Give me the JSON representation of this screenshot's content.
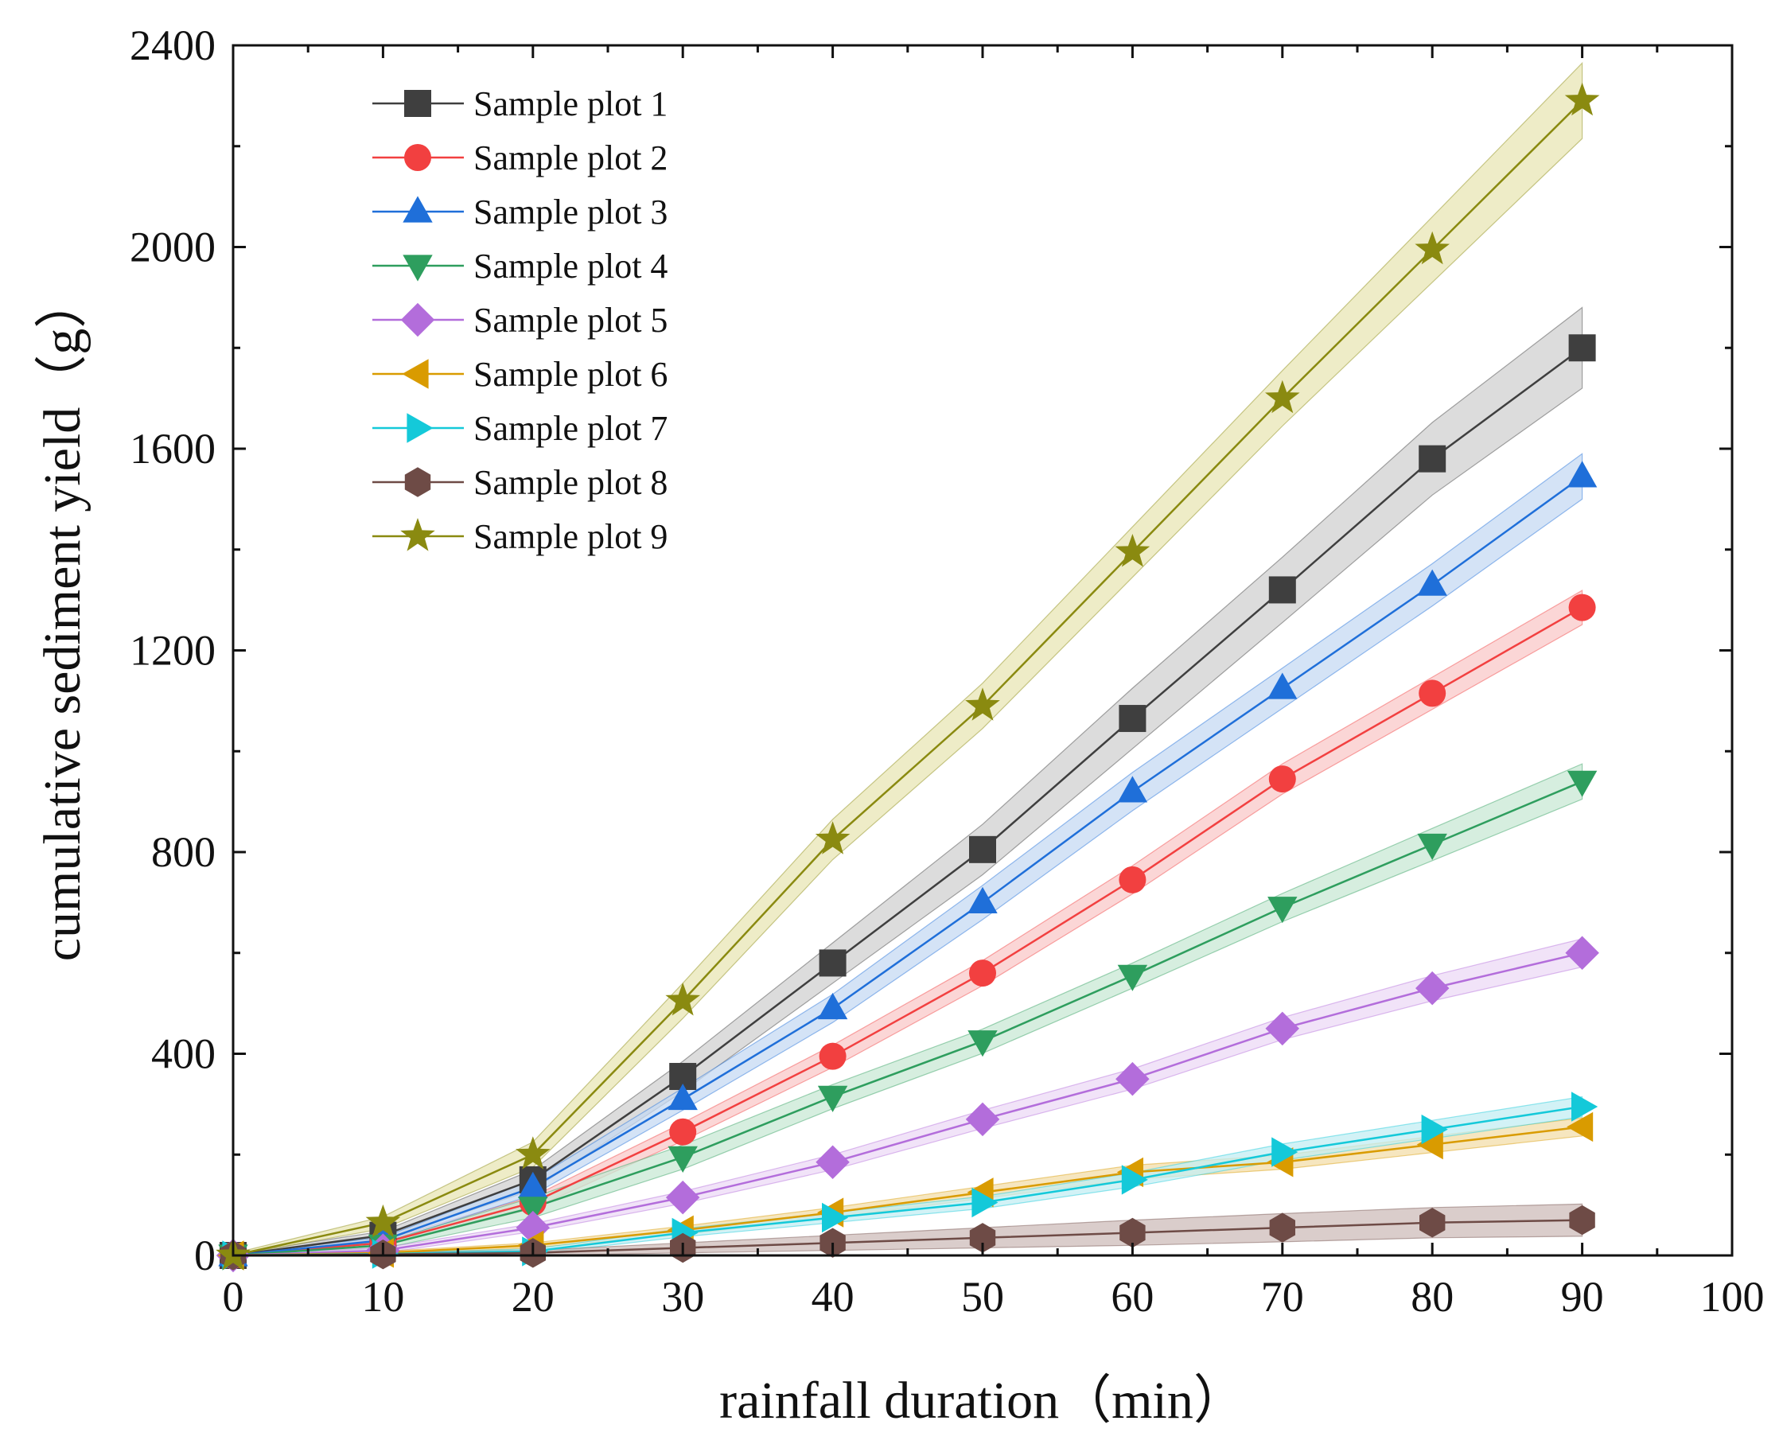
{
  "chart_data": {
    "type": "line",
    "title": "",
    "xlabel": "rainfall duration（min）",
    "ylabel": "cumulative sediment yield（g）",
    "xlim": [
      0,
      100
    ],
    "ylim": [
      0,
      2400
    ],
    "xticks": [
      "0",
      "10",
      "20",
      "30",
      "40",
      "50",
      "60",
      "70",
      "80",
      "90",
      "100"
    ],
    "yticks": [
      "0",
      "400",
      "800",
      "1200",
      "1600",
      "2000",
      "2400"
    ],
    "grid": false,
    "legend_position": "top-left",
    "x": [
      0,
      10,
      20,
      30,
      40,
      50,
      60,
      70,
      80,
      90
    ],
    "series": [
      {
        "name": "Sample plot 1",
        "color": "#3f3f3f",
        "band": "#d0d0d0",
        "marker": "square",
        "values": [
          0,
          40,
          150,
          355,
          580,
          805,
          1065,
          1320,
          1580,
          1800
        ],
        "error": [
          3,
          8,
          20,
          30,
          40,
          50,
          60,
          65,
          72,
          80
        ]
      },
      {
        "name": "Sample plot 2",
        "color": "#f24040",
        "band": "#f9c8c8",
        "marker": "circle",
        "values": [
          0,
          25,
          105,
          245,
          395,
          560,
          745,
          945,
          1115,
          1285
        ],
        "error": [
          3,
          6,
          12,
          18,
          22,
          25,
          28,
          30,
          32,
          34
        ]
      },
      {
        "name": "Sample plot 3",
        "color": "#1f6fd9",
        "band": "#c6daf3",
        "marker": "triangle-up",
        "values": [
          0,
          30,
          135,
          310,
          490,
          700,
          920,
          1125,
          1330,
          1545
        ],
        "error": [
          3,
          6,
          15,
          22,
          28,
          34,
          38,
          40,
          42,
          45
        ]
      },
      {
        "name": "Sample plot 4",
        "color": "#2e9e5e",
        "band": "#c8e8d4",
        "marker": "triangle-down",
        "values": [
          0,
          20,
          95,
          195,
          315,
          425,
          555,
          690,
          815,
          940
        ],
        "error": [
          3,
          6,
          20,
          24,
          24,
          24,
          25,
          28,
          32,
          35
        ]
      },
      {
        "name": "Sample plot 5",
        "color": "#b36ddb",
        "band": "#ecd9f5",
        "marker": "diamond",
        "values": [
          0,
          10,
          55,
          115,
          185,
          270,
          350,
          450,
          530,
          600
        ],
        "error": [
          3,
          5,
          8,
          12,
          15,
          18,
          20,
          22,
          25,
          28
        ]
      },
      {
        "name": "Sample plot 6",
        "color": "#d99b00",
        "band": "#f3deaa",
        "marker": "triangle-left",
        "values": [
          0,
          5,
          20,
          50,
          85,
          125,
          165,
          185,
          220,
          255
        ],
        "error": [
          2,
          3,
          5,
          8,
          10,
          12,
          14,
          14,
          16,
          18
        ]
      },
      {
        "name": "Sample plot 7",
        "color": "#14c9d9",
        "band": "#c3eef3",
        "marker": "triangle-right",
        "values": [
          0,
          3,
          8,
          45,
          75,
          105,
          150,
          205,
          250,
          295
        ],
        "error": [
          2,
          3,
          5,
          8,
          10,
          12,
          14,
          16,
          18,
          20
        ]
      },
      {
        "name": "Sample plot 8",
        "color": "#6e4b46",
        "band": "#cdbcb9",
        "marker": "hexagon",
        "values": [
          0,
          2,
          5,
          15,
          25,
          35,
          45,
          55,
          65,
          70
        ],
        "error": [
          2,
          3,
          5,
          10,
          15,
          20,
          25,
          28,
          30,
          32
        ]
      },
      {
        "name": "Sample plot 9",
        "color": "#8a8a10",
        "band": "#e8e6b4",
        "marker": "star",
        "values": [
          0,
          65,
          200,
          505,
          825,
          1090,
          1395,
          1700,
          1995,
          2290
        ],
        "error": [
          4,
          12,
          25,
          35,
          40,
          45,
          50,
          55,
          65,
          75
        ]
      }
    ]
  }
}
